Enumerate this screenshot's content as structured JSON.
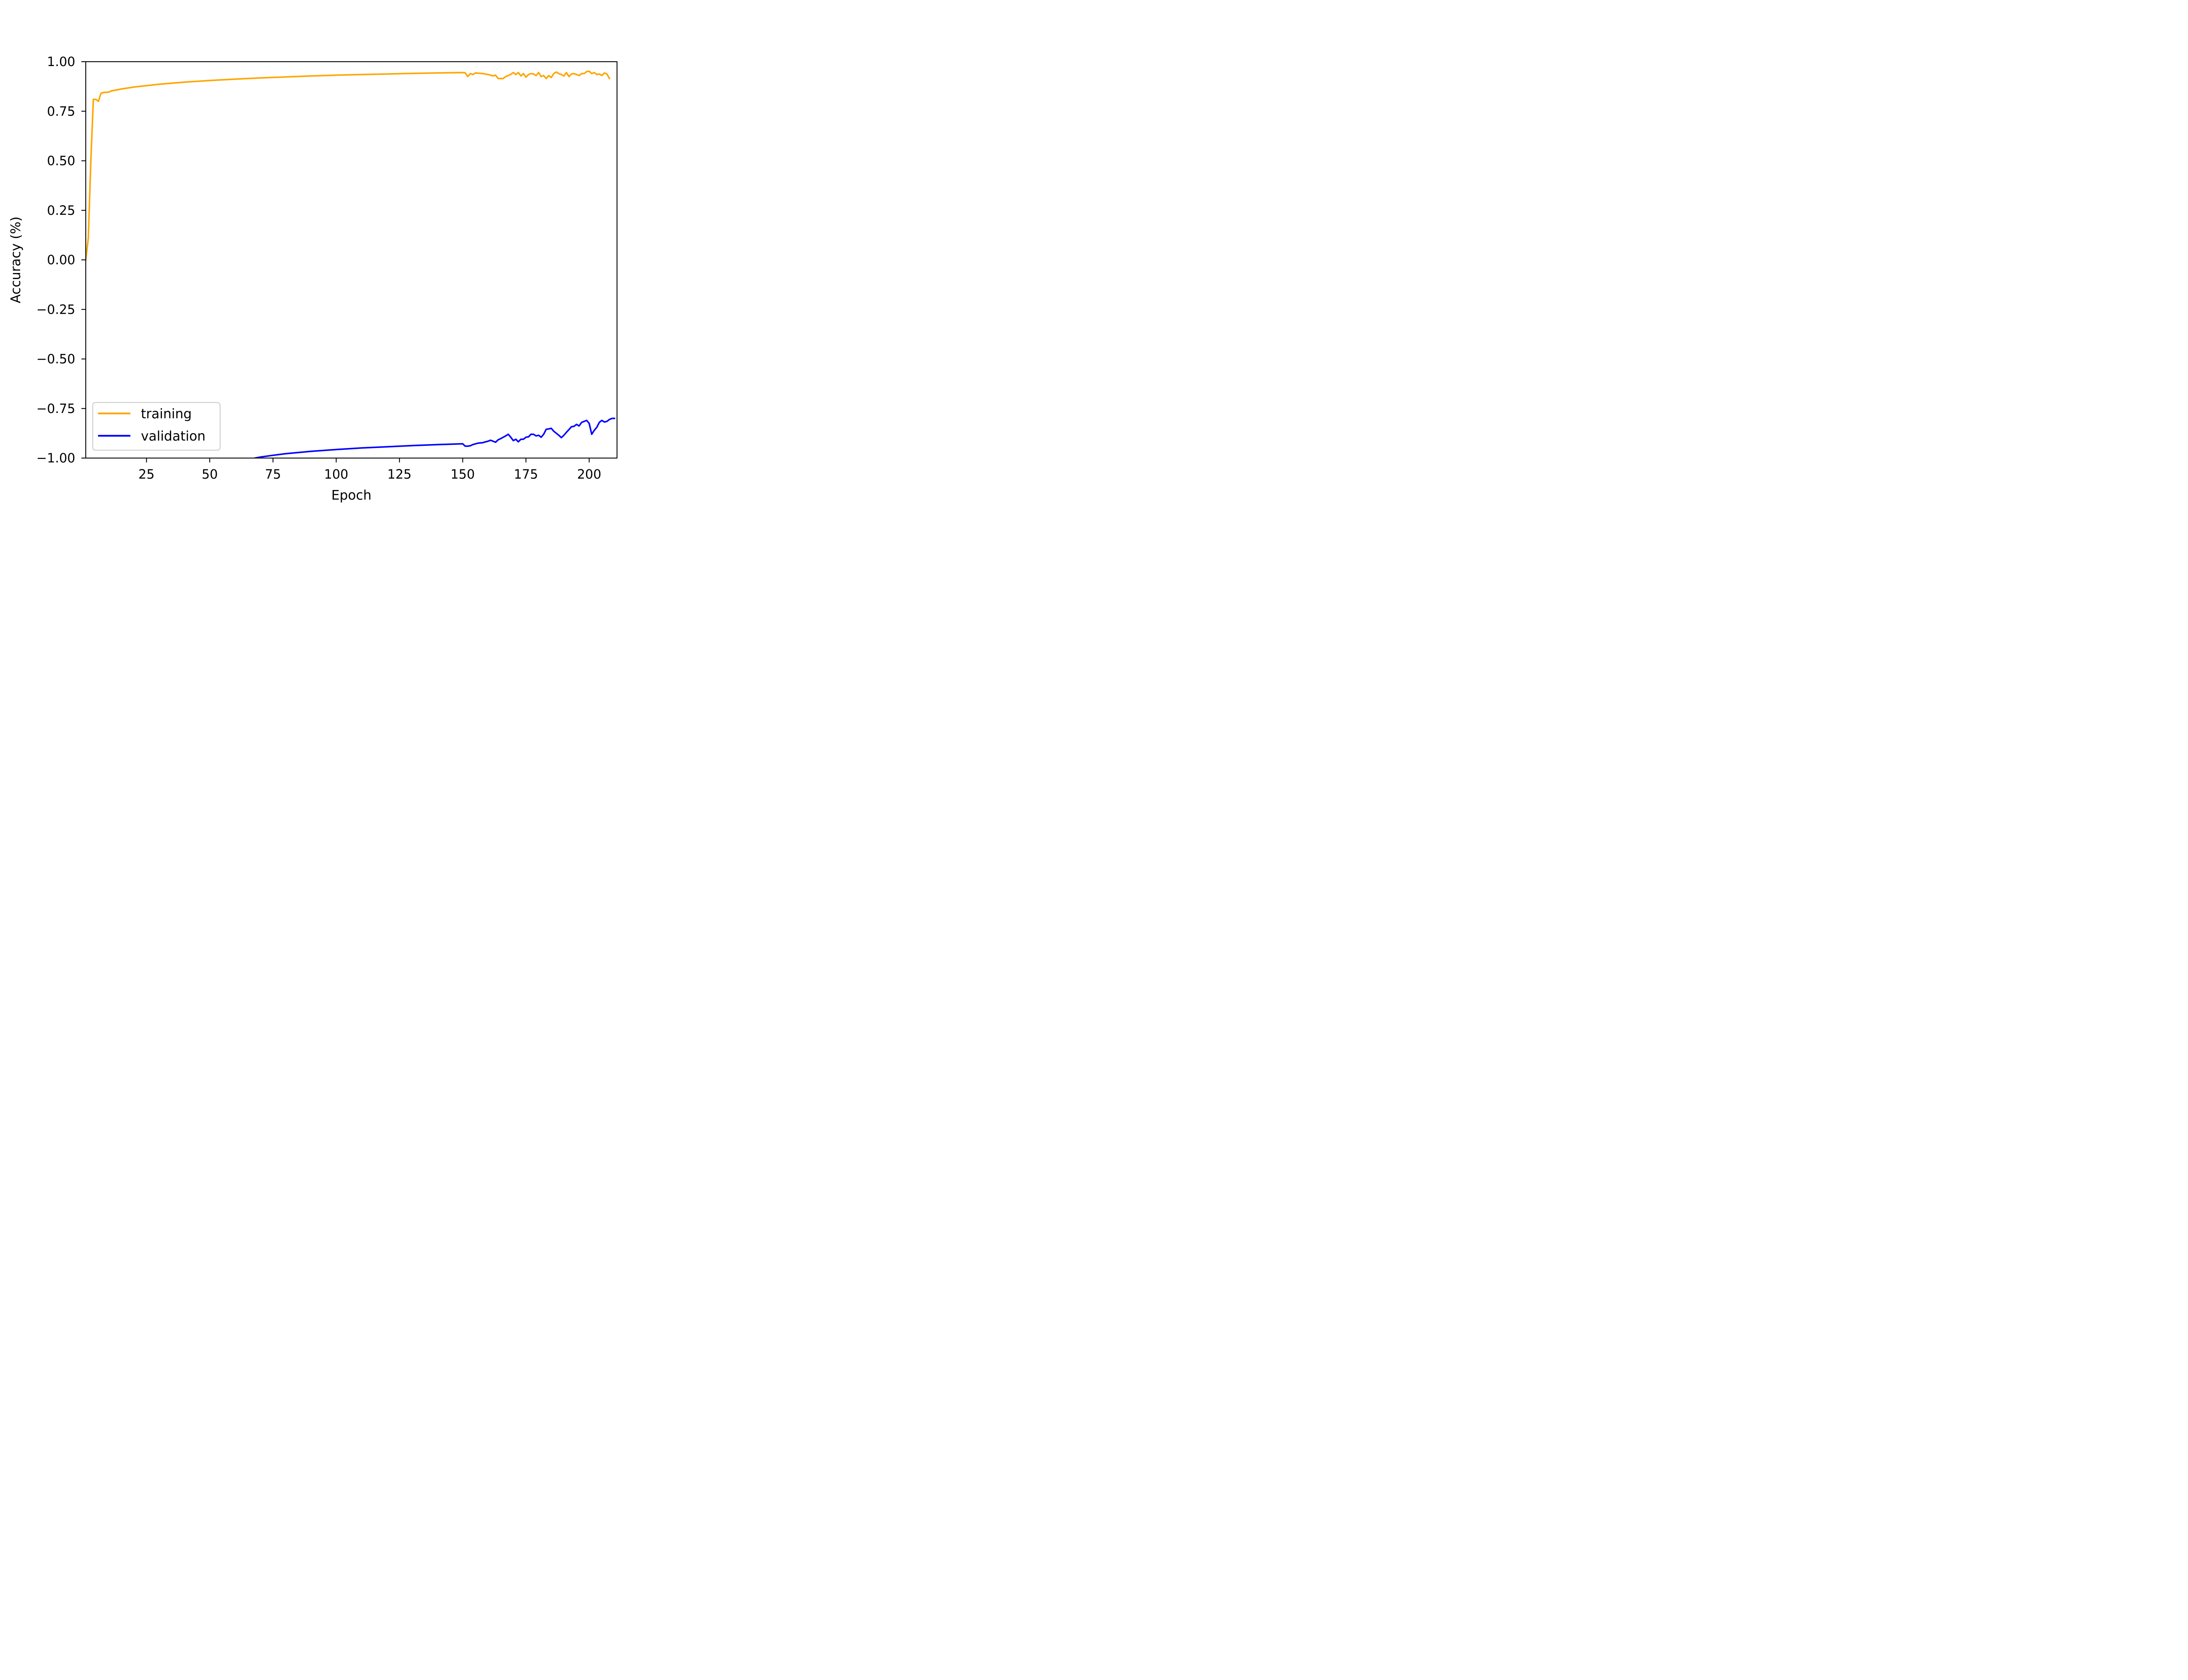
{
  "chart_data": {
    "type": "line",
    "xlabel": "Epoch",
    "ylabel": "Accuracy (%)",
    "xlim": [
      1,
      211
    ],
    "ylim": [
      -1.0,
      1.0
    ],
    "xticks": [
      25,
      50,
      75,
      100,
      125,
      150,
      175,
      200
    ],
    "xtick_labels": [
      "25",
      "50",
      "75",
      "100",
      "125",
      "150",
      "175",
      "200"
    ],
    "yticks": [
      -1.0,
      -0.75,
      -0.5,
      -0.25,
      0.0,
      0.25,
      0.5,
      0.75,
      1.0
    ],
    "ytick_labels": [
      "−1.00",
      "−0.75",
      "−0.50",
      "−0.25",
      "0.00",
      "0.25",
      "0.50",
      "0.75",
      "1.00"
    ],
    "grid": false,
    "legend": {
      "location": "lower-left",
      "entries": [
        "training",
        "validation"
      ]
    },
    "series": [
      {
        "name": "training",
        "color": "#ffa500",
        "points": [
          [
            1,
            0.0
          ],
          [
            2,
            0.11
          ],
          [
            3,
            0.5
          ],
          [
            4,
            0.81
          ],
          [
            5,
            0.81
          ],
          [
            6,
            0.8
          ],
          [
            7,
            0.84
          ],
          [
            8,
            0.845
          ],
          [
            10,
            0.846
          ],
          [
            11,
            0.852
          ],
          [
            15,
            0.862
          ],
          [
            20,
            0.872
          ],
          [
            25,
            0.879
          ],
          [
            30,
            0.886
          ],
          [
            40,
            0.897
          ],
          [
            50,
            0.905
          ],
          [
            60,
            0.912
          ],
          [
            70,
            0.918
          ],
          [
            80,
            0.923
          ],
          [
            90,
            0.928
          ],
          [
            100,
            0.932
          ],
          [
            110,
            0.935
          ],
          [
            120,
            0.938
          ],
          [
            130,
            0.941
          ],
          [
            140,
            0.943
          ],
          [
            150,
            0.945
          ],
          [
            151,
            0.944
          ],
          [
            152,
            0.925
          ],
          [
            153,
            0.94
          ],
          [
            154,
            0.935
          ],
          [
            155,
            0.943
          ],
          [
            158,
            0.94
          ],
          [
            160,
            0.935
          ],
          [
            161,
            0.932
          ],
          [
            162,
            0.928
          ],
          [
            163,
            0.932
          ],
          [
            164,
            0.915
          ],
          [
            165,
            0.915
          ],
          [
            166,
            0.915
          ],
          [
            167,
            0.925
          ],
          [
            168,
            0.93
          ],
          [
            169,
            0.936
          ],
          [
            170,
            0.945
          ],
          [
            171,
            0.935
          ],
          [
            172,
            0.945
          ],
          [
            173,
            0.928
          ],
          [
            174,
            0.94
          ],
          [
            175,
            0.922
          ],
          [
            176,
            0.935
          ],
          [
            177,
            0.94
          ],
          [
            178,
            0.938
          ],
          [
            179,
            0.93
          ],
          [
            180,
            0.945
          ],
          [
            181,
            0.925
          ],
          [
            182,
            0.93
          ],
          [
            183,
            0.915
          ],
          [
            184,
            0.93
          ],
          [
            185,
            0.92
          ],
          [
            186,
            0.94
          ],
          [
            187,
            0.948
          ],
          [
            188,
            0.94
          ],
          [
            189,
            0.935
          ],
          [
            190,
            0.928
          ],
          [
            191,
            0.945
          ],
          [
            192,
            0.925
          ],
          [
            193,
            0.938
          ],
          [
            194,
            0.94
          ],
          [
            195,
            0.935
          ],
          [
            196,
            0.93
          ],
          [
            197,
            0.94
          ],
          [
            198,
            0.94
          ],
          [
            199,
            0.95
          ],
          [
            200,
            0.952
          ],
          [
            201,
            0.94
          ],
          [
            202,
            0.945
          ],
          [
            203,
            0.935
          ],
          [
            204,
            0.938
          ],
          [
            205,
            0.93
          ],
          [
            206,
            0.943
          ],
          [
            207,
            0.938
          ],
          [
            208,
            0.915
          ]
        ]
      },
      {
        "name": "validation",
        "color": "#0000ff",
        "points": [
          [
            68,
            -1.0
          ],
          [
            70,
            -0.995
          ],
          [
            75,
            -0.986
          ],
          [
            80,
            -0.978
          ],
          [
            90,
            -0.966
          ],
          [
            100,
            -0.957
          ],
          [
            110,
            -0.949
          ],
          [
            120,
            -0.943
          ],
          [
            130,
            -0.937
          ],
          [
            140,
            -0.932
          ],
          [
            150,
            -0.928
          ],
          [
            151,
            -0.94
          ],
          [
            152,
            -0.94
          ],
          [
            153,
            -0.938
          ],
          [
            154,
            -0.932
          ],
          [
            156,
            -0.925
          ],
          [
            158,
            -0.922
          ],
          [
            159,
            -0.918
          ],
          [
            160,
            -0.915
          ],
          [
            161,
            -0.91
          ],
          [
            162,
            -0.915
          ],
          [
            163,
            -0.92
          ],
          [
            164,
            -0.908
          ],
          [
            165,
            -0.902
          ],
          [
            166,
            -0.895
          ],
          [
            167,
            -0.888
          ],
          [
            168,
            -0.88
          ],
          [
            169,
            -0.895
          ],
          [
            170,
            -0.912
          ],
          [
            171,
            -0.905
          ],
          [
            172,
            -0.918
          ],
          [
            173,
            -0.905
          ],
          [
            174,
            -0.905
          ],
          [
            175,
            -0.895
          ],
          [
            176,
            -0.893
          ],
          [
            177,
            -0.88
          ],
          [
            178,
            -0.88
          ],
          [
            179,
            -0.888
          ],
          [
            180,
            -0.885
          ],
          [
            181,
            -0.895
          ],
          [
            182,
            -0.88
          ],
          [
            183,
            -0.855
          ],
          [
            184,
            -0.853
          ],
          [
            185,
            -0.85
          ],
          [
            186,
            -0.865
          ],
          [
            187,
            -0.875
          ],
          [
            188,
            -0.885
          ],
          [
            189,
            -0.897
          ],
          [
            190,
            -0.885
          ],
          [
            191,
            -0.87
          ],
          [
            192,
            -0.856
          ],
          [
            193,
            -0.842
          ],
          [
            194,
            -0.84
          ],
          [
            195,
            -0.83
          ],
          [
            196,
            -0.838
          ],
          [
            197,
            -0.82
          ],
          [
            198,
            -0.815
          ],
          [
            199,
            -0.81
          ],
          [
            200,
            -0.825
          ],
          [
            201,
            -0.88
          ],
          [
            202,
            -0.86
          ],
          [
            203,
            -0.845
          ],
          [
            204,
            -0.82
          ],
          [
            205,
            -0.81
          ],
          [
            206,
            -0.818
          ],
          [
            207,
            -0.815
          ],
          [
            208,
            -0.805
          ],
          [
            209,
            -0.8
          ],
          [
            210,
            -0.8
          ]
        ]
      }
    ]
  }
}
